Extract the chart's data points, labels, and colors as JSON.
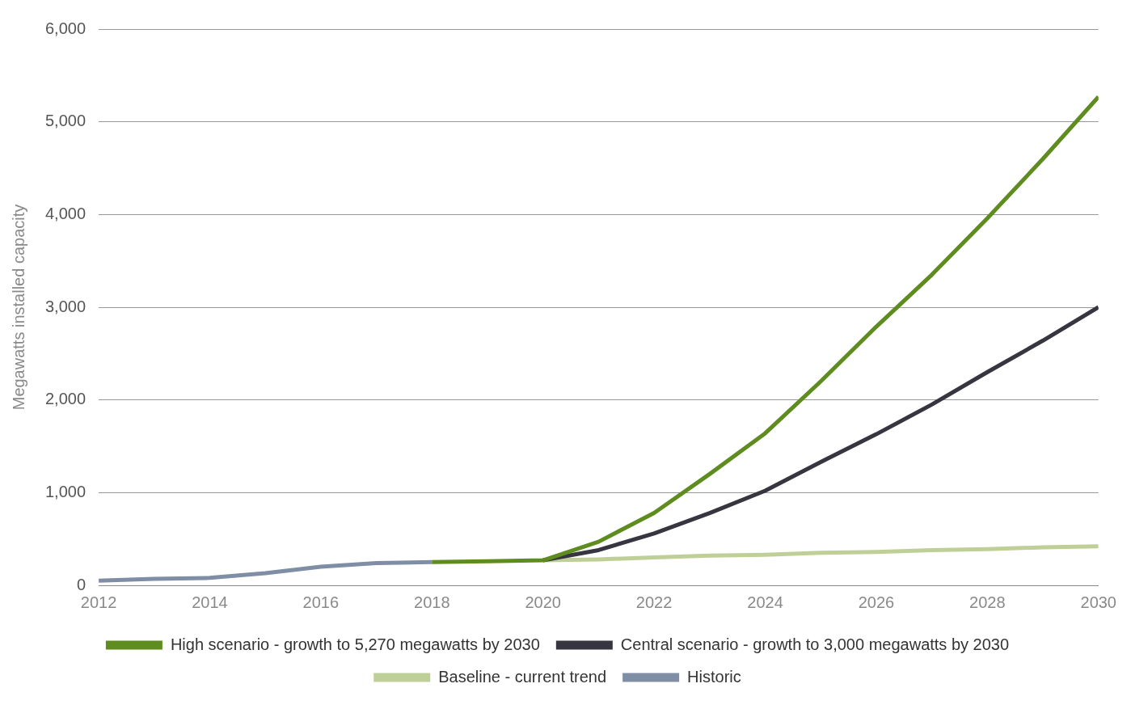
{
  "chart_data": {
    "type": "line",
    "ylabel": "Megawatts installed capacity",
    "x": [
      2012,
      2013,
      2014,
      2015,
      2016,
      2017,
      2018,
      2019,
      2020,
      2021,
      2022,
      2023,
      2024,
      2025,
      2026,
      2027,
      2028,
      2029,
      2030
    ],
    "series": [
      {
        "name": "High scenario - growth to 5,270 megawatts by 2030",
        "color": "#5e8c1f",
        "values": [
          null,
          null,
          null,
          null,
          null,
          null,
          250,
          260,
          270,
          470,
          780,
          1200,
          1640,
          2200,
          2790,
          3350,
          3960,
          4600,
          5270
        ]
      },
      {
        "name": "Central scenario - growth to 3,000 megawatts by 2030",
        "color": "#37353f",
        "values": [
          null,
          null,
          null,
          null,
          null,
          null,
          null,
          null,
          270,
          380,
          560,
          780,
          1020,
          1330,
          1630,
          1950,
          2300,
          2640,
          3000
        ]
      },
      {
        "name": "Baseline - current trend",
        "color": "#bfcf98",
        "values": [
          null,
          null,
          null,
          null,
          null,
          null,
          null,
          null,
          270,
          280,
          300,
          320,
          330,
          350,
          360,
          380,
          390,
          410,
          420
        ]
      },
      {
        "name": "Historic",
        "color": "#7f8ea5",
        "values": [
          50,
          70,
          80,
          130,
          200,
          240,
          250,
          null,
          null,
          null,
          null,
          null,
          null,
          null,
          null,
          null,
          null,
          null,
          null
        ]
      }
    ],
    "xlim": [
      2012,
      2030
    ],
    "xticks": [
      2012,
      2014,
      2016,
      2018,
      2020,
      2022,
      2024,
      2026,
      2028,
      2030
    ],
    "ylim": [
      0,
      6000
    ],
    "yticks": [
      {
        "value": 0,
        "label": "0"
      },
      {
        "value": 1000,
        "label": "1,000"
      },
      {
        "value": 2000,
        "label": "2,000"
      },
      {
        "value": 3000,
        "label": "3,000"
      },
      {
        "value": 4000,
        "label": "4,000"
      },
      {
        "value": 5000,
        "label": "5,000"
      },
      {
        "value": 6000,
        "label": "6,000"
      }
    ],
    "grid": "y",
    "legend": "bottom",
    "marker": "none",
    "line_style": "solid"
  }
}
